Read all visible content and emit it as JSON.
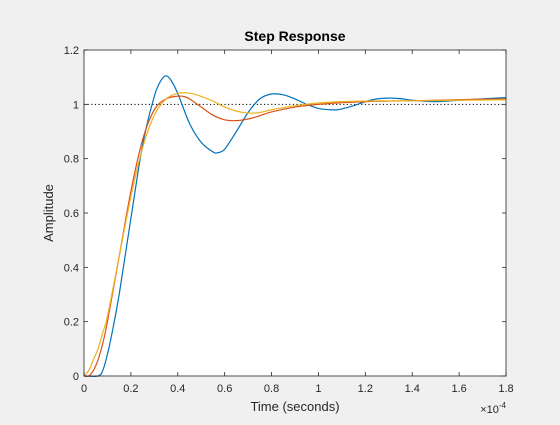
{
  "chart_data": {
    "type": "line",
    "title": "Step Response",
    "xlabel": "Time (seconds)",
    "ylabel": "Amplitude",
    "x_exponent_label": "×10",
    "x_exponent_power": "-4",
    "xlim": [
      0,
      1.8
    ],
    "ylim": [
      0,
      1.2
    ],
    "x_ticks": [
      0,
      0.2,
      0.4,
      0.6,
      0.8,
      1,
      1.2,
      1.4,
      1.6,
      1.8
    ],
    "x_tick_labels": [
      "0",
      "0.2",
      "0.4",
      "0.6",
      "0.8",
      "1",
      "1.2",
      "1.4",
      "1.6",
      "1.8"
    ],
    "y_ticks": [
      0,
      0.2,
      0.4,
      0.6,
      0.8,
      1,
      1.2
    ],
    "y_tick_labels": [
      "0",
      "0.2",
      "0.4",
      "0.6",
      "0.8",
      "1",
      "1.2"
    ],
    "grid": false,
    "reference_line": {
      "y": 1,
      "style": "dotted",
      "color": "#000000"
    },
    "series": [
      {
        "color": "#0072bd",
        "x": [
          0,
          0.06,
          0.08,
          0.1,
          0.12,
          0.15,
          0.2,
          0.25,
          0.3,
          0.33,
          0.35,
          0.37,
          0.4,
          0.45,
          0.5,
          0.55,
          0.57,
          0.6,
          0.65,
          0.7,
          0.75,
          0.8,
          0.85,
          0.9,
          0.95,
          1.0,
          1.05,
          1.08,
          1.1,
          1.15,
          1.2,
          1.25,
          1.3,
          1.33,
          1.36,
          1.4,
          1.5,
          1.6,
          1.7,
          1.8
        ],
        "y": [
          0,
          0,
          0.02,
          0.08,
          0.16,
          0.3,
          0.58,
          0.85,
          1.03,
          1.09,
          1.105,
          1.09,
          1.04,
          0.93,
          0.86,
          0.825,
          0.822,
          0.835,
          0.9,
          0.97,
          1.02,
          1.038,
          1.035,
          1.02,
          1.0,
          0.985,
          0.98,
          0.98,
          0.983,
          0.995,
          1.01,
          1.02,
          1.023,
          1.022,
          1.02,
          1.015,
          1.01,
          1.015,
          1.02,
          1.025
        ]
      },
      {
        "color": "#d95319",
        "x": [
          0,
          0.02,
          0.04,
          0.06,
          0.08,
          0.1,
          0.15,
          0.2,
          0.25,
          0.3,
          0.35,
          0.4,
          0.43,
          0.45,
          0.5,
          0.55,
          0.6,
          0.65,
          0.7,
          0.75,
          0.8,
          0.9,
          1.0,
          1.1,
          1.2,
          1.3,
          1.4,
          1.5,
          1.6,
          1.7,
          1.8
        ],
        "y": [
          0,
          0,
          0.02,
          0.06,
          0.12,
          0.2,
          0.44,
          0.68,
          0.87,
          0.98,
          1.02,
          1.03,
          1.028,
          1.02,
          0.99,
          0.96,
          0.943,
          0.94,
          0.946,
          0.958,
          0.972,
          0.99,
          1.0,
          1.006,
          1.01,
          1.012,
          1.013,
          1.015,
          1.017,
          1.019,
          1.02
        ]
      },
      {
        "color": "#edb120",
        "x": [
          0,
          0.02,
          0.04,
          0.06,
          0.08,
          0.1,
          0.15,
          0.2,
          0.25,
          0.3,
          0.35,
          0.4,
          0.44,
          0.48,
          0.55,
          0.6,
          0.65,
          0.7,
          0.75,
          0.8,
          0.9,
          1.0,
          1.1,
          1.2,
          1.3,
          1.4,
          1.5,
          1.6,
          1.7,
          1.8
        ],
        "y": [
          0,
          0.02,
          0.06,
          0.1,
          0.16,
          0.22,
          0.44,
          0.66,
          0.84,
          0.96,
          1.02,
          1.04,
          1.042,
          1.035,
          1.012,
          0.99,
          0.975,
          0.968,
          0.97,
          0.98,
          0.995,
          1.005,
          1.01,
          1.012,
          1.013,
          1.013,
          1.014,
          1.015,
          1.016,
          1.017
        ]
      }
    ]
  }
}
